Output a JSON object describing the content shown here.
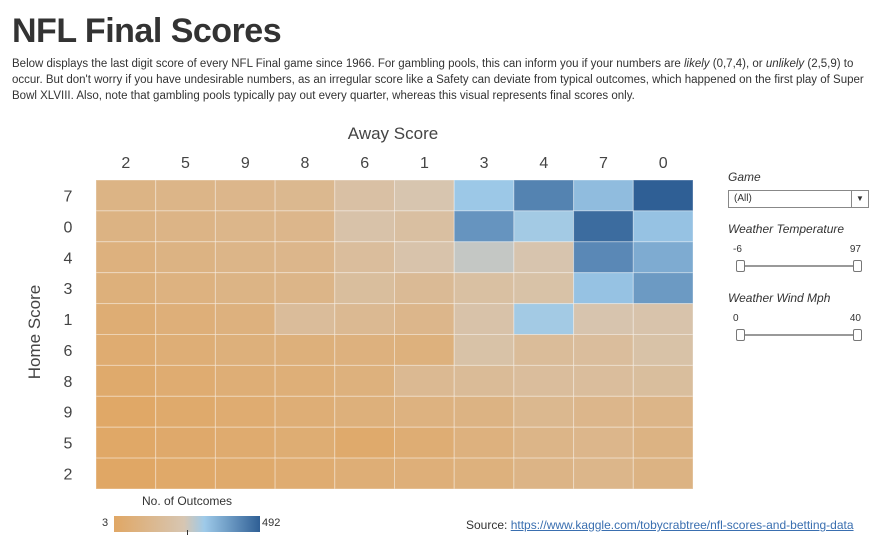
{
  "title": "NFL Final Scores",
  "intro": {
    "p1": "Below displays the last digit score of every NFL Final game since 1966. For gambling pools, this can inform you if your numbers are ",
    "likely": "likely",
    "p2": " (0,7,4), or ",
    "unlikely": "unlikely",
    "p3": " (2,5,9) to occur. But don't worry if you have undesirable numbers, as an irregular score like a Safety can deviate from typical outcomes, which happened on the first play of Super Bowl XLVIII. Also, note that gambling pools typically pay out every quarter, whereas this visual represents final scores only."
  },
  "filters": {
    "game": {
      "label": "Game",
      "value": "(All)"
    },
    "temperature": {
      "label": "Weather Temperature",
      "min": "-6",
      "max": "97",
      "low_fraction": 0.0,
      "high_fraction": 1.0
    },
    "wind": {
      "label": "Weather Wind Mph",
      "min": "0",
      "max": "40",
      "low_fraction": 0.0,
      "high_fraction": 1.0
    }
  },
  "legend": {
    "title": "No. of Outcomes",
    "min": "3",
    "max": "492"
  },
  "source": {
    "label": "Source:",
    "url": "https://www.kaggle.com/tobycrabtree/nfl-scores-and-betting-data"
  },
  "colors": {
    "low": "#e0a765",
    "mid": "#d7c6b2",
    "light_blue": "#9ecae9",
    "high": "#2f5f95"
  },
  "chart_data": {
    "type": "heatmap",
    "xlabel": "Away Score",
    "ylabel": "Home Score",
    "x_categories": [
      "2",
      "5",
      "9",
      "8",
      "6",
      "1",
      "3",
      "4",
      "7",
      "0"
    ],
    "y_categories": [
      "7",
      "0",
      "4",
      "3",
      "1",
      "6",
      "8",
      "9",
      "5",
      "2"
    ],
    "value_range": [
      3,
      492
    ],
    "values": [
      [
        100,
        110,
        120,
        130,
        195,
        230,
        310,
        430,
        330,
        492
      ],
      [
        95,
        105,
        115,
        120,
        210,
        185,
        400,
        300,
        470,
        320
      ],
      [
        80,
        95,
        110,
        120,
        170,
        215,
        260,
        225,
        420,
        360
      ],
      [
        70,
        85,
        100,
        110,
        175,
        150,
        190,
        205,
        320,
        390
      ],
      [
        50,
        65,
        80,
        165,
        140,
        120,
        210,
        300,
        225,
        215
      ],
      [
        40,
        55,
        70,
        70,
        80,
        75,
        205,
        160,
        170,
        205
      ],
      [
        25,
        40,
        55,
        60,
        75,
        140,
        155,
        170,
        170,
        175
      ],
      [
        10,
        25,
        40,
        55,
        70,
        85,
        95,
        130,
        120,
        110
      ],
      [
        8,
        20,
        35,
        45,
        25,
        50,
        80,
        110,
        120,
        95
      ],
      [
        3,
        15,
        25,
        40,
        55,
        65,
        75,
        105,
        115,
        95
      ]
    ]
  }
}
